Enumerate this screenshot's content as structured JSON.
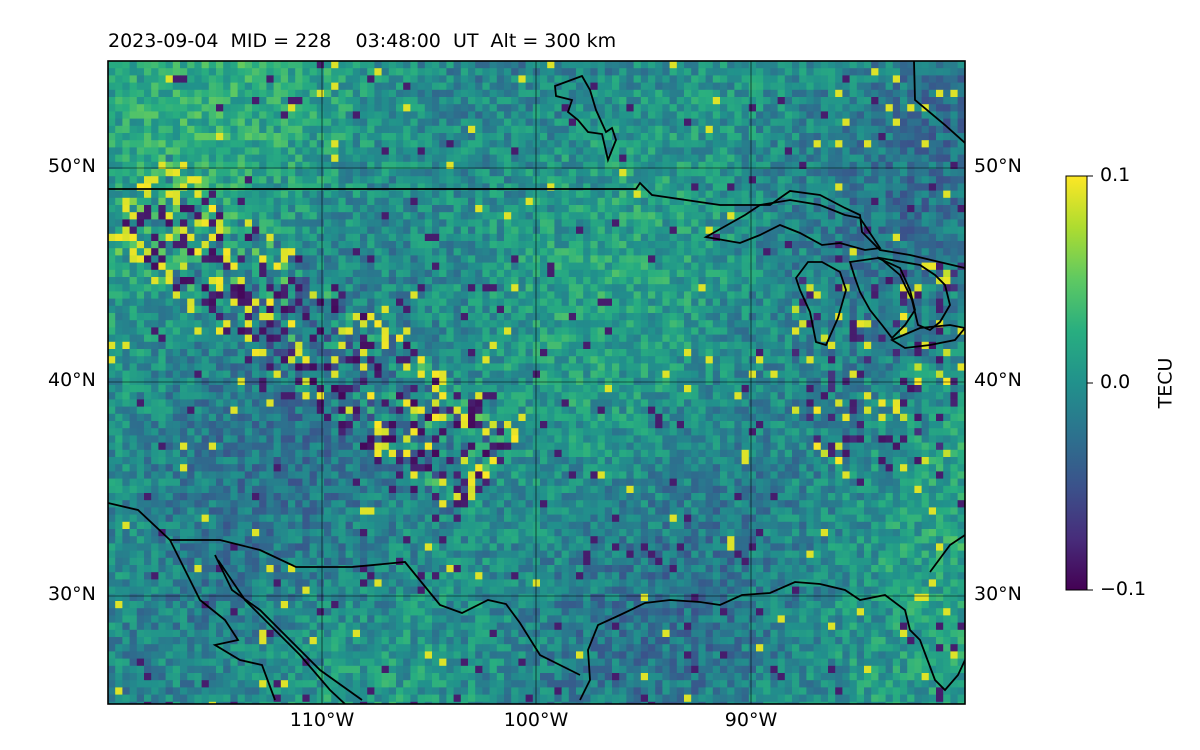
{
  "title": "2023-09-04  MID = 228    03:48:00  UT  Alt = 300 km",
  "lat_labels": [
    "50°N",
    "40°N",
    "30°N"
  ],
  "lon_labels": [
    "110°W",
    "100°W",
    "90°W"
  ],
  "colorbar": {
    "label": "TECU",
    "ticks": [
      "0.1",
      "0.0",
      "−0.1"
    ],
    "min": -0.1,
    "max": 0.1,
    "colormap": "viridis"
  },
  "map_extent": {
    "lon_min": -120,
    "lon_max": -80,
    "lat_min": 25,
    "lat_max": 55
  },
  "gridlines": {
    "lons": [
      -110,
      -100,
      -90
    ],
    "lats": [
      30,
      40,
      50
    ]
  },
  "colors": {
    "low": "#440154",
    "mid_low": "#3b528b",
    "mid": "#21918c",
    "mid_high": "#5ec962",
    "high": "#fde725"
  }
}
